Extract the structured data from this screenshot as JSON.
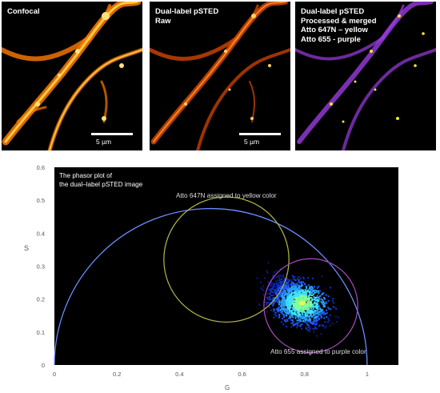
{
  "panels": [
    {
      "label": "Confocal",
      "scale_bar": "",
      "color": "#ff7a00"
    },
    {
      "label": "Dual-label pSTED\nRaw",
      "scale_bar": "5 µm",
      "color": "#ff5a00"
    },
    {
      "label": "Dual-label pSTED\nProcessed & merged\nAtto 647N – yellow\nAtto 655 - purple",
      "scale_bar": "",
      "color": "#b050ff"
    }
  ],
  "confocal_scale_bar": "5 µm",
  "phasor_plot": {
    "title_line1": "The phasor plot of",
    "title_line2": "the dual–label pSTED image",
    "annotation_yellow": "Atto 647N assigned to yellow color",
    "annotation_purple": "Atto 655 assigned to purple color",
    "xlabel": "G",
    "ylabel": "S",
    "x_ticks": [
      "0",
      "0.2",
      "0.4",
      "0.6",
      "0.8",
      "1"
    ],
    "y_ticks": [
      "0",
      "0.1",
      "0.2",
      "0.3",
      "0.4",
      "0.5",
      "0.6"
    ],
    "colors": {
      "semicircle": "#6a8dff",
      "yellow_circle": "#b8b84a",
      "purple_circle": "#a64dbf",
      "background": "#000000"
    }
  },
  "chart_data": {
    "type": "scatter",
    "title": "The phasor plot of the dual–label pSTED image",
    "xlabel": "G",
    "ylabel": "S",
    "xlim": [
      0,
      1.1
    ],
    "ylim": [
      0,
      0.6
    ],
    "semicircle": {
      "center": [
        0.5,
        0
      ],
      "radius": 0.5
    },
    "circles": [
      {
        "label": "Atto 647N assigned to yellow color",
        "center": [
          0.55,
          0.32
        ],
        "radius": 0.2,
        "color": "#b8b84a"
      },
      {
        "label": "Atto 655 assigned to purple color",
        "center": [
          0.82,
          0.18
        ],
        "radius": 0.15,
        "color": "#a64dbf"
      }
    ],
    "cluster": {
      "center": [
        0.79,
        0.19
      ],
      "spread_g": 0.08,
      "spread_s": 0.06
    },
    "grid": false,
    "legend": "none"
  }
}
